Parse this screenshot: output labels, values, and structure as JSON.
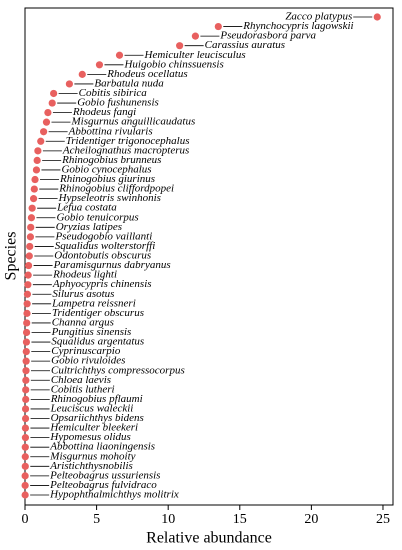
{
  "chart_data": {
    "type": "dot",
    "x_label": "Relative abundance",
    "y_label": "Species",
    "color": "#e8605f",
    "xlim": [
      0,
      25.7
    ],
    "xticks": [
      0,
      5,
      10,
      15,
      20,
      25
    ],
    "categories": [
      "Zacco platypus",
      "Rhynchocypris lagowskii",
      "Pseudorasbora parva",
      "Carassius auratus",
      "Hemiculter leucisculus",
      "Huigobio chinssuensis",
      "Rhodeus ocellatus",
      "Barbatula nuda",
      "Cobitis sibirica",
      "Gobio fushunensis",
      "Rhodeus fangi",
      "Misgurnus anguillicaudatus",
      "Abbottina rivularis",
      "Tridentiger trigonocephalus",
      "Acheilognathus macropterus",
      "Rhinogobius brunneus",
      "Gobio cynocephalus",
      "Rhinogobius giurinus",
      "Rhinogobius cliffordpopei",
      "Hypseleotris swinhonis",
      "Lefua costata",
      "Gobio tenuicorpus",
      "Oryzias latipes",
      "Pseudogobio vaillanti",
      "Squalidus wolterstorffi",
      "Odontobutis obscurus",
      "Paramisgurnus dabryanus",
      "Rhodeus lighti",
      "Aphyocypris chinensis",
      "Silurus asotus",
      "Lampetra reissneri",
      "Tridentiger obscurus",
      "Channa argus",
      "Pungitius sinensis",
      "Squalidus argentatus",
      "Cyprinuscarpio",
      "Gobio rivuloides",
      "Cultrichthys compressocorpus",
      "Chloea laevis",
      "Cobitis lutheri",
      "Rhinogobius pflaumi",
      "Leuciscus waleckii",
      "Opsariichthys bidens",
      "Hemiculter bleekeri",
      "Hypomesus olidus",
      "Abbottina liaoningensis",
      "Misgurnus mohoity",
      "Aristichthysnobilis",
      "Pelteobagrus ussuriensis",
      "Pelteobagrus fulvidraco",
      "Hypophthalmichthys molitrix"
    ],
    "values": [
      24.6,
      13.5,
      11.9,
      10.8,
      6.6,
      5.2,
      4.0,
      3.1,
      2.0,
      1.9,
      1.6,
      1.5,
      1.3,
      1.1,
      0.9,
      0.85,
      0.8,
      0.7,
      0.65,
      0.6,
      0.5,
      0.45,
      0.4,
      0.38,
      0.33,
      0.3,
      0.25,
      0.22,
      0.2,
      0.17,
      0.15,
      0.14,
      0.12,
      0.11,
      0.1,
      0.09,
      0.08,
      0.07,
      0.06,
      0.05,
      0.05,
      0.04,
      0.04,
      0.03,
      0.03,
      0.02,
      0.02,
      0.02,
      0.01,
      0.01,
      0.01
    ]
  }
}
